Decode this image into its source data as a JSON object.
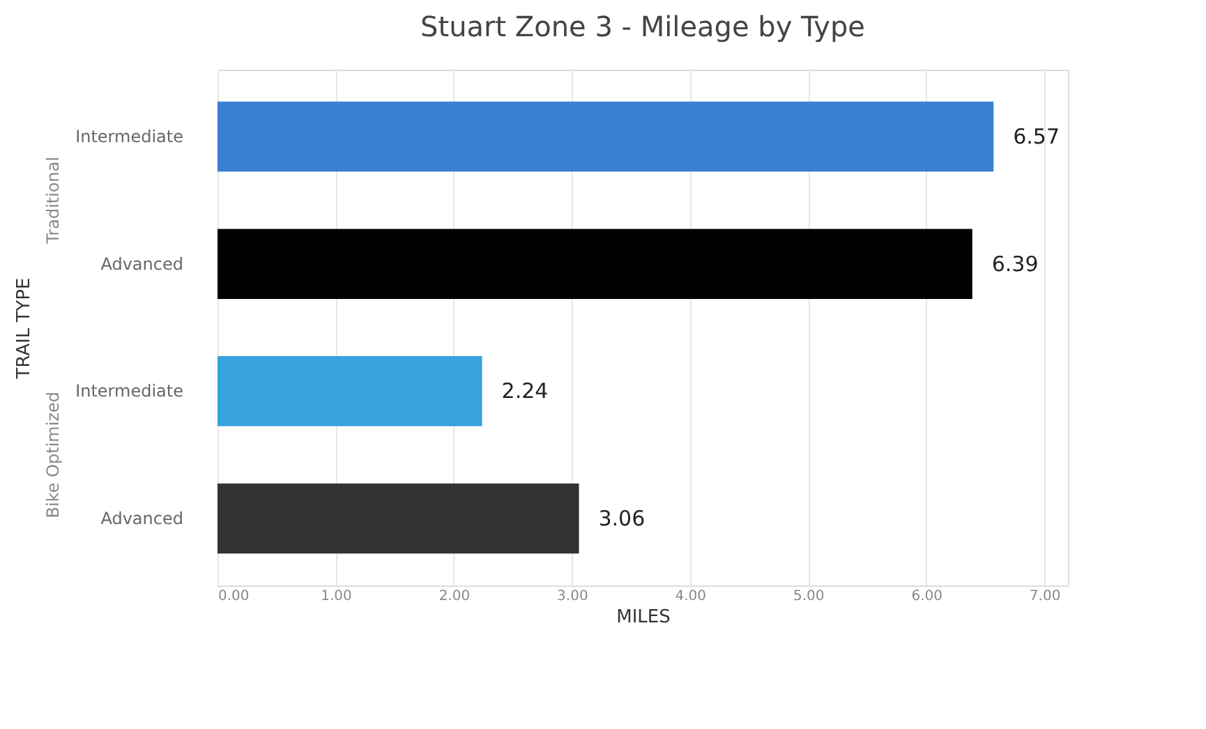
{
  "chart_data": {
    "type": "bar",
    "orientation": "horizontal",
    "title": "Stuart Zone 3 - Mileage by Type",
    "xlabel": "MILES",
    "ylabel": "TRAIL TYPE",
    "categories": [
      "Intermediate",
      "Advanced",
      "Intermediate",
      "Advanced"
    ],
    "values": [
      6.57,
      6.39,
      2.24,
      3.06
    ],
    "colors": [
      "#3a80d2",
      "#000000",
      "#36a2de",
      "#333333"
    ],
    "data_labels": true,
    "annotations": [
      "Traditional",
      "Bike Optimized"
    ],
    "xlim": [
      0,
      7.2
    ],
    "xticks": [
      {
        "value": 0,
        "label": "0.00"
      },
      {
        "value": 1,
        "label": "1.00"
      },
      {
        "value": 2,
        "label": "2.00"
      },
      {
        "value": 3,
        "label": "3.00"
      },
      {
        "value": 4,
        "label": "4.00"
      },
      {
        "value": 5,
        "label": "5.00"
      },
      {
        "value": 6,
        "label": "6.00"
      },
      {
        "value": 7,
        "label": "7.00"
      }
    ],
    "grid": "x"
  }
}
